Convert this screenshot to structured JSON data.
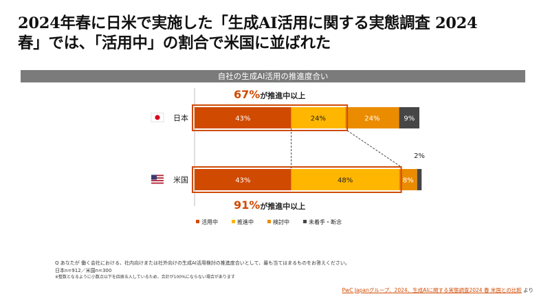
{
  "headline": {
    "line1": "2024年春に日米で実施した「生成AI活用に関する実態調査 2024",
    "line2": "春」では、「活用中」の割合で米国に並ばれた"
  },
  "chart_data": {
    "type": "bar",
    "orientation": "horizontal",
    "stacked": true,
    "title": "自社の生成AI活用の推進度合い",
    "categories": [
      "日本",
      "米国"
    ],
    "series": [
      {
        "name": "活用中",
        "color": "#d04a02",
        "values": [
          43,
          43
        ],
        "labels": [
          "43%",
          "43%"
        ]
      },
      {
        "name": "推進中",
        "color": "#ffb600",
        "values": [
          24,
          48
        ],
        "labels": [
          "24%",
          "48%"
        ]
      },
      {
        "name": "検討中",
        "color": "#eb8c00",
        "values": [
          24,
          8
        ],
        "labels": [
          "24%",
          "8%"
        ]
      },
      {
        "name": "未着手・断念",
        "color": "#464646",
        "values": [
          9,
          2
        ],
        "labels": [
          "9%",
          "2%"
        ]
      }
    ],
    "xlim": [
      0,
      100
    ],
    "grid": false,
    "legend_position": "bottom",
    "annotations": [
      {
        "value": "67%",
        "text": "が推進中以上"
      },
      {
        "value": "91%",
        "text": "が推進中以上"
      }
    ]
  },
  "footnote": {
    "q": "Q  あなたが 働く会社における、社内向けまたは社外向けの生成AI活用検討の推進度合いとして、最も当てはまるものをお答えください。",
    "n": "日本n=912／米国n=300",
    "note": "※整数となるように小数点以下を四捨五入しているため、合計が100%にならない場合があります"
  },
  "source": {
    "link": "PwC Japanグループ、2024、生成AIに関する実態調査2024 春 米国との比較",
    "suffix": " より"
  },
  "colors": {
    "accent": "#d04a02",
    "banner": "#7b7b7b"
  }
}
